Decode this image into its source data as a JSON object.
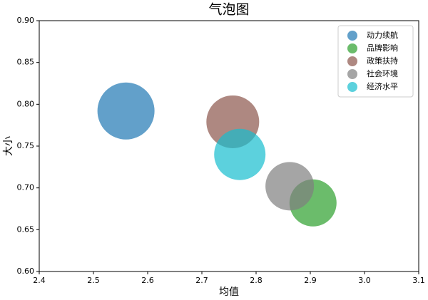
{
  "chart_data": {
    "type": "scatter",
    "title": "气泡图",
    "x_label": "均值",
    "y_label": "大小",
    "xlim": [
      2.4,
      3.1
    ],
    "xticks": [
      2.4,
      2.5,
      2.6,
      2.7,
      2.8,
      2.9,
      {
        "value": 3.0,
        "label": "3.0"
      },
      3.1
    ],
    "ylim": [
      0.6,
      0.9
    ],
    "yticks": [
      {
        "value": 0.6,
        "label": "0.60"
      },
      0.65,
      {
        "value": 0.7,
        "label": "0.70"
      },
      0.75,
      {
        "value": 0.8,
        "label": "0.80"
      },
      0.85,
      {
        "value": 0.9,
        "label": "0.90"
      }
    ],
    "legend": "upper right",
    "series": [
      {
        "name": "动力续航",
        "color": "#1f77b4",
        "x": [
          2.56
        ],
        "y": [
          0.792
        ],
        "size": [
          1600
        ]
      },
      {
        "name": "品牌影响",
        "color": "#2ca02c",
        "x": [
          2.905
        ],
        "y": [
          0.682
        ],
        "size": [
          1089
        ]
      },
      {
        "name": "政策扶持",
        "color": "#8c564b",
        "x": [
          2.757
        ],
        "y": [
          0.779
        ],
        "size": [
          1369
        ]
      },
      {
        "name": "社会环境",
        "color": "#7f7f7f",
        "x": [
          2.862
        ],
        "y": [
          0.702
        ],
        "size": [
          1156
        ]
      },
      {
        "name": "经济水平",
        "color": "#17becf",
        "x": [
          2.77
        ],
        "y": [
          0.74
        ],
        "size": [
          1296
        ]
      }
    ]
  }
}
